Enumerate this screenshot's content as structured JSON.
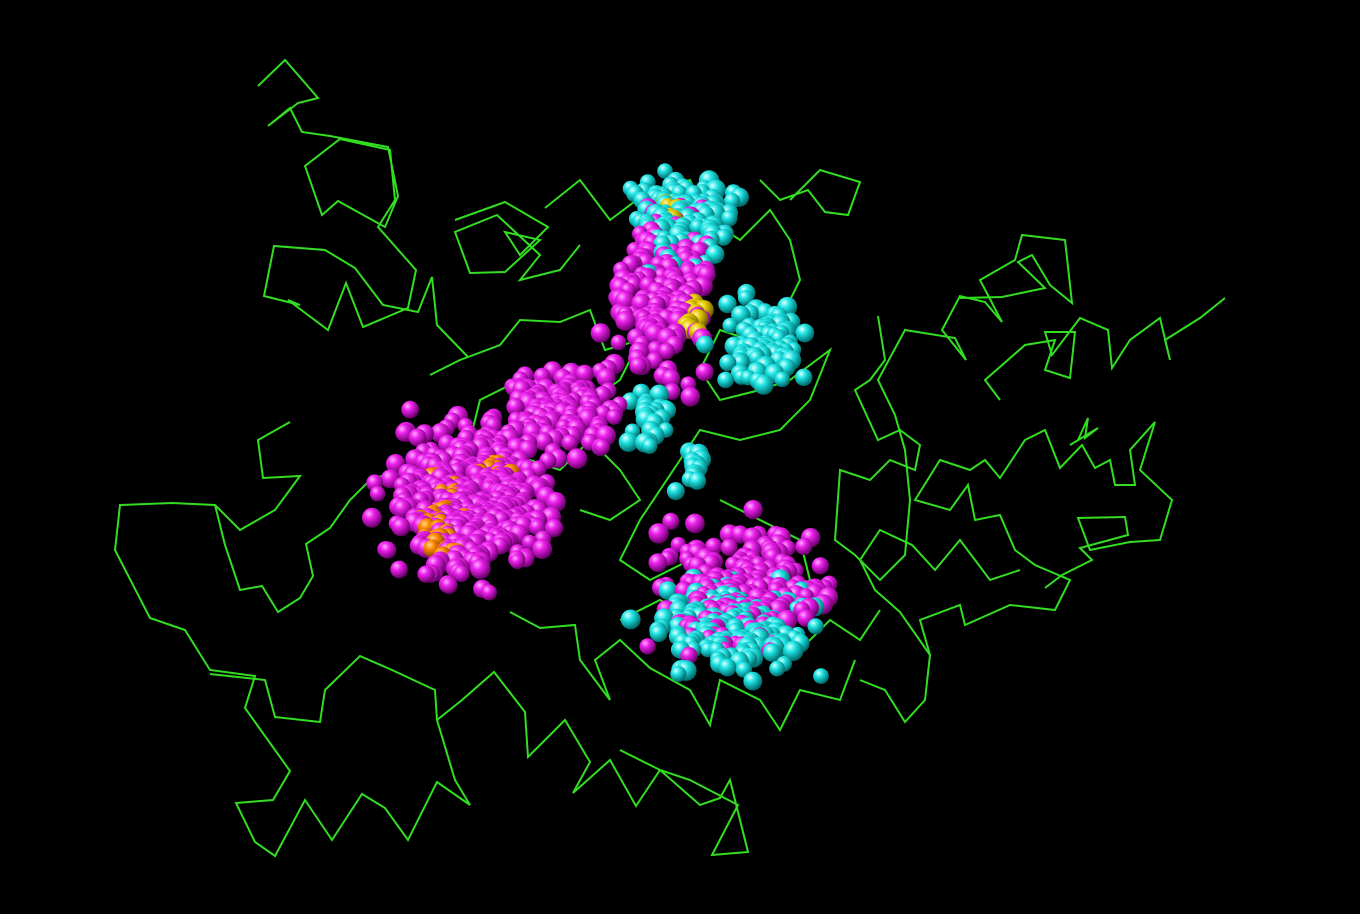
{
  "scene": {
    "background_color": "#000000",
    "ribbon_color": "#33dd22",
    "sphere_colors": {
      "magenta": "#e000e0",
      "cyan": "#20e8e8",
      "orange": "#ff8800",
      "yellow": "#e8cc00"
    },
    "representation": [
      "ribbon-trace",
      "spheres"
    ]
  }
}
